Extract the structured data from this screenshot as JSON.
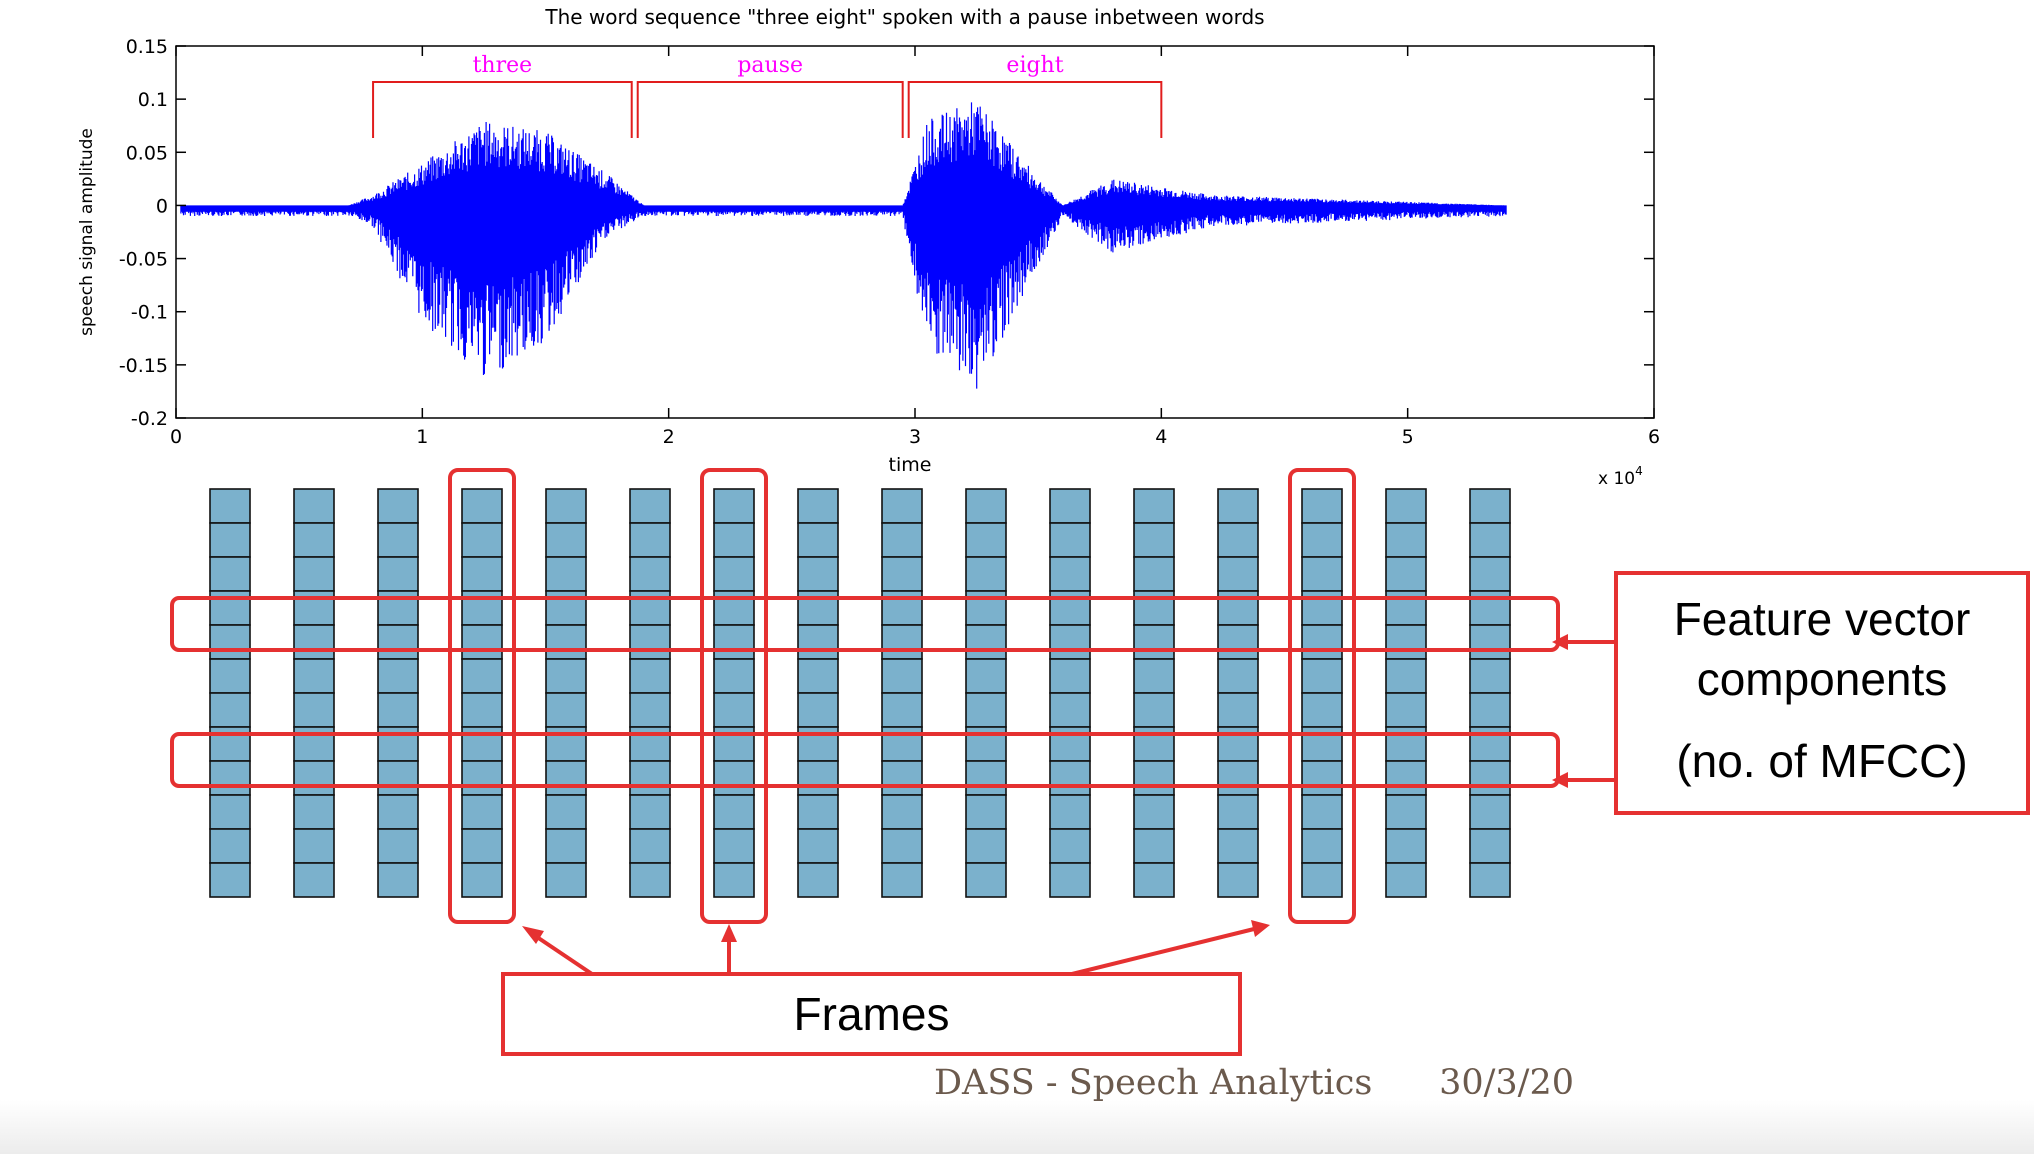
{
  "plot": {
    "title": "The word sequence \"three eight\" spoken with a pause inbetween words",
    "ylabel": "speech signal amplitude",
    "xlabel": "time",
    "x_multiplier": "x 10^4",
    "y_ticks": [
      "0.15",
      "0.1",
      "0.05",
      "0",
      "-0.05",
      "-0.1",
      "-0.15",
      "-0.2"
    ],
    "x_ticks": [
      "0",
      "1",
      "2",
      "3",
      "4",
      "5",
      "6"
    ],
    "segments": [
      {
        "label": "three",
        "start": 0.8,
        "end": 1.85
      },
      {
        "label": "pause",
        "start": 1.85,
        "end": 2.95
      },
      {
        "label": "eight",
        "start": 2.95,
        "end": 4.0
      }
    ]
  },
  "chart_data": {
    "type": "line",
    "title": "The word sequence \"three eight\" spoken with a pause inbetween words",
    "xlabel": "time",
    "ylabel": "speech signal amplitude",
    "x_scale": "x 10^4",
    "xlim": [
      0,
      6
    ],
    "ylim": [
      -0.2,
      0.15
    ],
    "envelope": [
      {
        "x": 0.0,
        "y_max": 0.0,
        "y_min": -0.01
      },
      {
        "x": 0.7,
        "y_max": 0.0,
        "y_min": -0.01
      },
      {
        "x": 0.8,
        "y_max": 0.01,
        "y_min": -0.02
      },
      {
        "x": 1.0,
        "y_max": 0.04,
        "y_min": -0.11
      },
      {
        "x": 1.25,
        "y_max": 0.08,
        "y_min": -0.165
      },
      {
        "x": 1.5,
        "y_max": 0.07,
        "y_min": -0.13
      },
      {
        "x": 1.75,
        "y_max": 0.03,
        "y_min": -0.03
      },
      {
        "x": 1.9,
        "y_max": 0.0,
        "y_min": -0.01
      },
      {
        "x": 2.95,
        "y_max": 0.0,
        "y_min": -0.01
      },
      {
        "x": 3.05,
        "y_max": 0.08,
        "y_min": -0.14
      },
      {
        "x": 3.25,
        "y_max": 0.1,
        "y_min": -0.175
      },
      {
        "x": 3.45,
        "y_max": 0.04,
        "y_min": -0.08
      },
      {
        "x": 3.6,
        "y_max": 0.0,
        "y_min": -0.01
      },
      {
        "x": 3.8,
        "y_max": 0.025,
        "y_min": -0.045
      },
      {
        "x": 4.2,
        "y_max": 0.01,
        "y_min": -0.02
      },
      {
        "x": 5.4,
        "y_max": 0.0,
        "y_min": -0.01
      }
    ]
  },
  "grid": {
    "frame_count": 16,
    "cells_per_frame": 12,
    "highlighted_frames": [
      3,
      6,
      13
    ],
    "highlighted_component_rows": [
      4,
      8
    ]
  },
  "labels": {
    "feature_line1": "Feature vector",
    "feature_line2": "components",
    "feature_line3": "(no. of MFCC)",
    "frames": "Frames"
  },
  "footer": {
    "course": "DASS - Speech Analytics",
    "date": "30/3/20"
  },
  "colors": {
    "signal": "#0000ff",
    "segment_bracket": "#e11d1d",
    "segment_label": "#ff00ff",
    "cell_fill": "#7bb1cc",
    "highlight": "#e53131",
    "footer": "#6b5a4d"
  }
}
